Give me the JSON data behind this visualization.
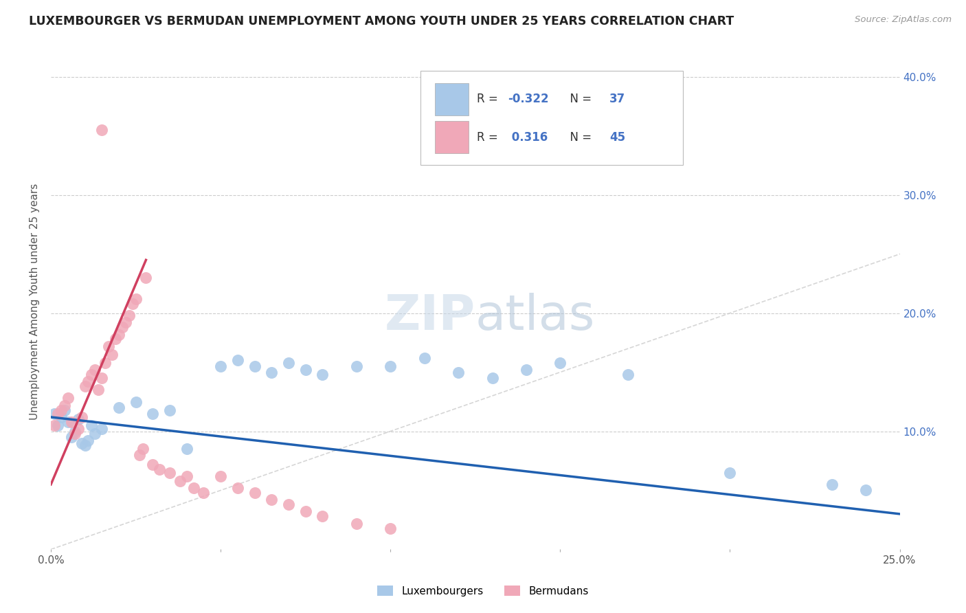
{
  "title": "LUXEMBOURGER VS BERMUDAN UNEMPLOYMENT AMONG YOUTH UNDER 25 YEARS CORRELATION CHART",
  "source": "Source: ZipAtlas.com",
  "ylabel": "Unemployment Among Youth under 25 years",
  "xlim": [
    0.0,
    0.25
  ],
  "ylim": [
    0.0,
    0.42
  ],
  "xticks": [
    0.0,
    0.05,
    0.1,
    0.15,
    0.2,
    0.25
  ],
  "xtick_labels": [
    "0.0%",
    "",
    "",
    "",
    "",
    "25.0%"
  ],
  "ytick_labels_right": [
    "10.0%",
    "20.0%",
    "30.0%",
    "40.0%"
  ],
  "ytick_right_vals": [
    0.1,
    0.2,
    0.3,
    0.4
  ],
  "watermark_left": "ZIP",
  "watermark_right": "atlas",
  "lux_color": "#A8C8E8",
  "ber_color": "#F0A8B8",
  "lux_line_color": "#2060B0",
  "ber_line_color": "#D04060",
  "diagonal_color": "#CCCCCC",
  "lux_R": -0.322,
  "lux_N": 37,
  "ber_R": 0.316,
  "ber_N": 45,
  "lux_trend_x0": 0.0,
  "lux_trend_y0": 0.112,
  "lux_trend_x1": 0.25,
  "lux_trend_y1": 0.03,
  "ber_trend_x0": 0.0,
  "ber_trend_y0": 0.055,
  "ber_trend_x1": 0.028,
  "ber_trend_y1": 0.245,
  "lux_scatter_x": [
    0.001,
    0.002,
    0.003,
    0.004,
    0.005,
    0.006,
    0.007,
    0.008,
    0.009,
    0.01,
    0.011,
    0.012,
    0.013,
    0.015,
    0.02,
    0.025,
    0.03,
    0.035,
    0.04,
    0.05,
    0.055,
    0.06,
    0.065,
    0.07,
    0.075,
    0.08,
    0.09,
    0.1,
    0.11,
    0.12,
    0.13,
    0.14,
    0.15,
    0.17,
    0.2,
    0.23,
    0.24
  ],
  "lux_scatter_y": [
    0.115,
    0.105,
    0.112,
    0.118,
    0.108,
    0.095,
    0.1,
    0.11,
    0.09,
    0.088,
    0.092,
    0.105,
    0.098,
    0.102,
    0.12,
    0.125,
    0.115,
    0.118,
    0.085,
    0.155,
    0.16,
    0.155,
    0.15,
    0.158,
    0.152,
    0.148,
    0.155,
    0.155,
    0.162,
    0.15,
    0.145,
    0.152,
    0.158,
    0.148,
    0.065,
    0.055,
    0.05
  ],
  "ber_scatter_x": [
    0.001,
    0.002,
    0.003,
    0.004,
    0.005,
    0.006,
    0.007,
    0.008,
    0.009,
    0.01,
    0.011,
    0.012,
    0.013,
    0.014,
    0.015,
    0.016,
    0.017,
    0.018,
    0.019,
    0.02,
    0.021,
    0.022,
    0.023,
    0.024,
    0.025,
    0.026,
    0.027,
    0.028,
    0.03,
    0.032,
    0.035,
    0.038,
    0.04,
    0.042,
    0.045,
    0.05,
    0.055,
    0.06,
    0.065,
    0.07,
    0.075,
    0.08,
    0.09,
    0.1,
    0.015
  ],
  "ber_scatter_y": [
    0.105,
    0.115,
    0.118,
    0.122,
    0.128,
    0.108,
    0.098,
    0.102,
    0.112,
    0.138,
    0.142,
    0.148,
    0.152,
    0.135,
    0.145,
    0.158,
    0.172,
    0.165,
    0.178,
    0.182,
    0.188,
    0.192,
    0.198,
    0.208,
    0.212,
    0.08,
    0.085,
    0.23,
    0.072,
    0.068,
    0.065,
    0.058,
    0.062,
    0.052,
    0.048,
    0.062,
    0.052,
    0.048,
    0.042,
    0.038,
    0.032,
    0.028,
    0.022,
    0.018,
    0.355
  ]
}
